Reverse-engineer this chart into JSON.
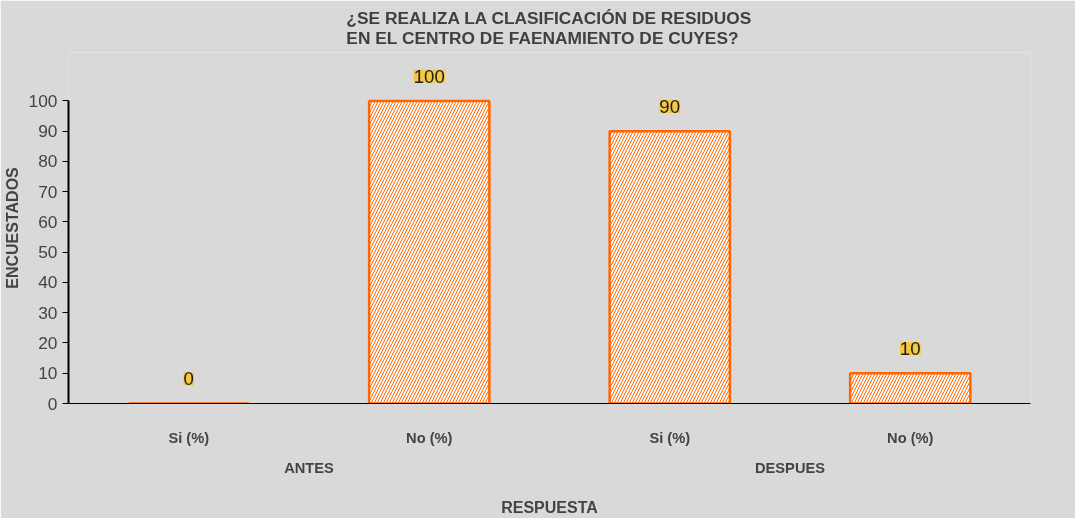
{
  "chart_data": {
    "type": "bar",
    "title": "¿SE REALIZA LA CLASIFICACIÓN DE RESIDUOS EN EL CENTRO DE FAENAMIENTO DE CUYES?",
    "xlabel": "RESPUESTA",
    "ylabel": "ENCUESTADOS",
    "categories": [
      "Si (%)",
      "No (%)",
      "Si (%)",
      "No (%)"
    ],
    "values": [
      0,
      100,
      90,
      10
    ],
    "color": "#ff6600",
    "ylim": [
      0,
      100
    ],
    "yticks": [
      0,
      10,
      20,
      30,
      40,
      50,
      60,
      70,
      80,
      90,
      100
    ],
    "grid": false,
    "data_labels": true,
    "annotations": [
      "ANTES",
      "DESPUES"
    ]
  }
}
